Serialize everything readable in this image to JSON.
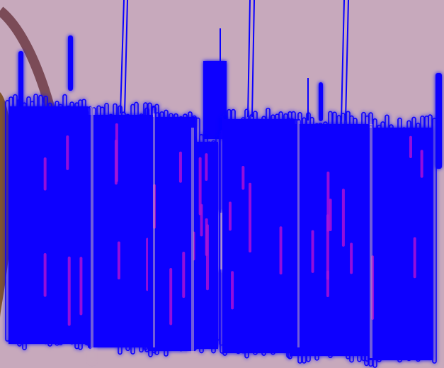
{
  "colors": {
    "background": "#c7a9bc",
    "primary_strokes": "#0a00ff",
    "accent_strokes": "#a313d8",
    "glow": "#5b6bff",
    "branch": "#6d3b45",
    "leaf": "#7a4b1a"
  },
  "scene": {
    "description_icons": [
      "branch-shape",
      "leaf-shape",
      "stroke-blocks"
    ]
  }
}
